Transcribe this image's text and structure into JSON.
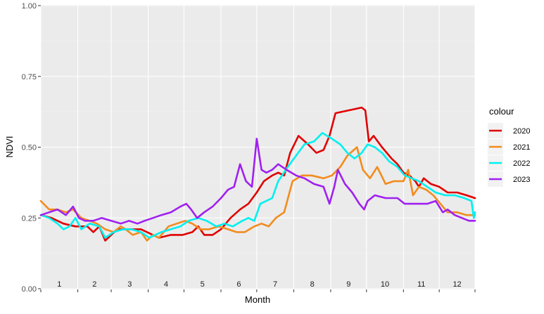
{
  "chart_data": {
    "type": "line",
    "xlabel": "Month",
    "ylabel": "NDVI",
    "ylim": [
      0,
      1
    ],
    "xlim": [
      1,
      365
    ],
    "y_ticks": [
      "0.00",
      "0.25",
      "0.50",
      "0.75",
      "1.00"
    ],
    "y_tick_values": [
      0,
      0.25,
      0.5,
      0.75,
      1
    ],
    "x_tick_labels": [
      "1",
      "2",
      "3",
      "4",
      "5",
      "6",
      "7",
      "8",
      "9",
      "10",
      "11",
      "12"
    ],
    "grid": true,
    "legend": {
      "title": "colour",
      "position": "right"
    },
    "series": [
      {
        "name": "2020",
        "color": "#E00000",
        "points": [
          [
            1,
            0.26
          ],
          [
            10,
            0.25
          ],
          [
            20,
            0.23
          ],
          [
            30,
            0.22
          ],
          [
            40,
            0.22
          ],
          [
            45,
            0.2
          ],
          [
            50,
            0.22
          ],
          [
            55,
            0.17
          ],
          [
            60,
            0.19
          ],
          [
            65,
            0.21
          ],
          [
            75,
            0.21
          ],
          [
            85,
            0.21
          ],
          [
            90,
            0.2
          ],
          [
            95,
            0.19
          ],
          [
            100,
            0.18
          ],
          [
            110,
            0.19
          ],
          [
            120,
            0.19
          ],
          [
            128,
            0.2
          ],
          [
            133,
            0.22
          ],
          [
            138,
            0.19
          ],
          [
            145,
            0.19
          ],
          [
            152,
            0.21
          ],
          [
            160,
            0.25
          ],
          [
            168,
            0.28
          ],
          [
            175,
            0.3
          ],
          [
            182,
            0.34
          ],
          [
            188,
            0.38
          ],
          [
            195,
            0.4
          ],
          [
            200,
            0.41
          ],
          [
            205,
            0.4
          ],
          [
            210,
            0.48
          ],
          [
            217,
            0.54
          ],
          [
            225,
            0.51
          ],
          [
            232,
            0.48
          ],
          [
            238,
            0.49
          ],
          [
            243,
            0.54
          ],
          [
            248,
            0.62
          ],
          [
            270,
            0.64
          ],
          [
            273,
            0.63
          ],
          [
            276,
            0.52
          ],
          [
            280,
            0.54
          ],
          [
            287,
            0.5
          ],
          [
            295,
            0.46
          ],
          [
            300,
            0.44
          ],
          [
            305,
            0.41
          ],
          [
            310,
            0.4
          ],
          [
            315,
            0.38
          ],
          [
            318,
            0.36
          ],
          [
            322,
            0.39
          ],
          [
            328,
            0.37
          ],
          [
            335,
            0.36
          ],
          [
            342,
            0.34
          ],
          [
            350,
            0.34
          ],
          [
            358,
            0.33
          ],
          [
            365,
            0.32
          ]
        ]
      },
      {
        "name": "2021",
        "color": "#F28C1E",
        "points": [
          [
            1,
            0.31
          ],
          [
            8,
            0.28
          ],
          [
            15,
            0.28
          ],
          [
            22,
            0.27
          ],
          [
            28,
            0.28
          ],
          [
            35,
            0.25
          ],
          [
            42,
            0.24
          ],
          [
            48,
            0.23
          ],
          [
            55,
            0.21
          ],
          [
            62,
            0.2
          ],
          [
            68,
            0.22
          ],
          [
            72,
            0.21
          ],
          [
            78,
            0.19
          ],
          [
            85,
            0.2
          ],
          [
            90,
            0.17
          ],
          [
            95,
            0.19
          ],
          [
            100,
            0.18
          ],
          [
            108,
            0.22
          ],
          [
            115,
            0.23
          ],
          [
            122,
            0.24
          ],
          [
            128,
            0.23
          ],
          [
            135,
            0.21
          ],
          [
            142,
            0.21
          ],
          [
            150,
            0.22
          ],
          [
            158,
            0.21
          ],
          [
            165,
            0.2
          ],
          [
            172,
            0.2
          ],
          [
            180,
            0.22
          ],
          [
            186,
            0.23
          ],
          [
            192,
            0.22
          ],
          [
            198,
            0.25
          ],
          [
            205,
            0.27
          ],
          [
            212,
            0.38
          ],
          [
            220,
            0.4
          ],
          [
            228,
            0.4
          ],
          [
            238,
            0.39
          ],
          [
            245,
            0.4
          ],
          [
            252,
            0.43
          ],
          [
            258,
            0.47
          ],
          [
            266,
            0.5
          ],
          [
            271,
            0.42
          ],
          [
            277,
            0.39
          ],
          [
            283,
            0.43
          ],
          [
            290,
            0.37
          ],
          [
            297,
            0.38
          ],
          [
            305,
            0.38
          ],
          [
            309,
            0.42
          ],
          [
            313,
            0.33
          ],
          [
            318,
            0.36
          ],
          [
            324,
            0.35
          ],
          [
            330,
            0.33
          ],
          [
            336,
            0.3
          ],
          [
            342,
            0.27
          ],
          [
            350,
            0.27
          ],
          [
            358,
            0.26
          ],
          [
            365,
            0.26
          ]
        ]
      },
      {
        "name": "2022",
        "color": "#00F0F0",
        "points": [
          [
            1,
            0.26
          ],
          [
            8,
            0.25
          ],
          [
            15,
            0.23
          ],
          [
            20,
            0.21
          ],
          [
            25,
            0.22
          ],
          [
            30,
            0.25
          ],
          [
            35,
            0.21
          ],
          [
            42,
            0.23
          ],
          [
            50,
            0.22
          ],
          [
            55,
            0.18
          ],
          [
            62,
            0.2
          ],
          [
            70,
            0.21
          ],
          [
            77,
            0.21
          ],
          [
            85,
            0.2
          ],
          [
            92,
            0.18
          ],
          [
            97,
            0.19
          ],
          [
            102,
            0.2
          ],
          [
            110,
            0.21
          ],
          [
            118,
            0.22
          ],
          [
            125,
            0.24
          ],
          [
            133,
            0.25
          ],
          [
            140,
            0.24
          ],
          [
            148,
            0.22
          ],
          [
            155,
            0.23
          ],
          [
            162,
            0.22
          ],
          [
            170,
            0.24
          ],
          [
            175,
            0.25
          ],
          [
            180,
            0.24
          ],
          [
            185,
            0.3
          ],
          [
            190,
            0.31
          ],
          [
            195,
            0.32
          ],
          [
            200,
            0.38
          ],
          [
            208,
            0.43
          ],
          [
            215,
            0.47
          ],
          [
            222,
            0.51
          ],
          [
            230,
            0.52
          ],
          [
            237,
            0.55
          ],
          [
            245,
            0.53
          ],
          [
            252,
            0.51
          ],
          [
            258,
            0.48
          ],
          [
            264,
            0.46
          ],
          [
            270,
            0.48
          ],
          [
            275,
            0.51
          ],
          [
            281,
            0.5
          ],
          [
            287,
            0.48
          ],
          [
            293,
            0.45
          ],
          [
            300,
            0.43
          ],
          [
            306,
            0.4
          ],
          [
            312,
            0.39
          ],
          [
            318,
            0.38
          ],
          [
            325,
            0.36
          ],
          [
            332,
            0.34
          ],
          [
            340,
            0.33
          ],
          [
            348,
            0.33
          ],
          [
            356,
            0.32
          ],
          [
            362,
            0.31
          ],
          [
            364,
            0.25
          ],
          [
            365,
            0.27
          ]
        ]
      },
      {
        "name": "2023",
        "color": "#A020F0",
        "points": [
          [
            1,
            0.26
          ],
          [
            8,
            0.27
          ],
          [
            15,
            0.28
          ],
          [
            22,
            0.26
          ],
          [
            28,
            0.29
          ],
          [
            33,
            0.25
          ],
          [
            38,
            0.24
          ],
          [
            45,
            0.24
          ],
          [
            52,
            0.25
          ],
          [
            60,
            0.24
          ],
          [
            68,
            0.23
          ],
          [
            75,
            0.24
          ],
          [
            82,
            0.23
          ],
          [
            88,
            0.24
          ],
          [
            95,
            0.25
          ],
          [
            102,
            0.26
          ],
          [
            110,
            0.27
          ],
          [
            118,
            0.29
          ],
          [
            123,
            0.3
          ],
          [
            127,
            0.28
          ],
          [
            132,
            0.25
          ],
          [
            138,
            0.27
          ],
          [
            145,
            0.29
          ],
          [
            152,
            0.32
          ],
          [
            158,
            0.35
          ],
          [
            163,
            0.36
          ],
          [
            168,
            0.44
          ],
          [
            173,
            0.38
          ],
          [
            178,
            0.36
          ],
          [
            182,
            0.53
          ],
          [
            186,
            0.42
          ],
          [
            190,
            0.41
          ],
          [
            195,
            0.42
          ],
          [
            200,
            0.44
          ],
          [
            207,
            0.42
          ],
          [
            215,
            0.4
          ],
          [
            222,
            0.39
          ],
          [
            230,
            0.37
          ],
          [
            238,
            0.36
          ],
          [
            243,
            0.3
          ],
          [
            247,
            0.36
          ],
          [
            250,
            0.42
          ],
          [
            256,
            0.37
          ],
          [
            262,
            0.34
          ],
          [
            268,
            0.3
          ],
          [
            272,
            0.28
          ],
          [
            275,
            0.31
          ],
          [
            281,
            0.33
          ],
          [
            290,
            0.32
          ],
          [
            300,
            0.32
          ],
          [
            306,
            0.3
          ],
          [
            315,
            0.3
          ],
          [
            325,
            0.3
          ],
          [
            332,
            0.31
          ],
          [
            338,
            0.27
          ],
          [
            342,
            0.28
          ],
          [
            348,
            0.26
          ],
          [
            354,
            0.25
          ],
          [
            360,
            0.24
          ],
          [
            365,
            0.24
          ]
        ]
      }
    ]
  }
}
